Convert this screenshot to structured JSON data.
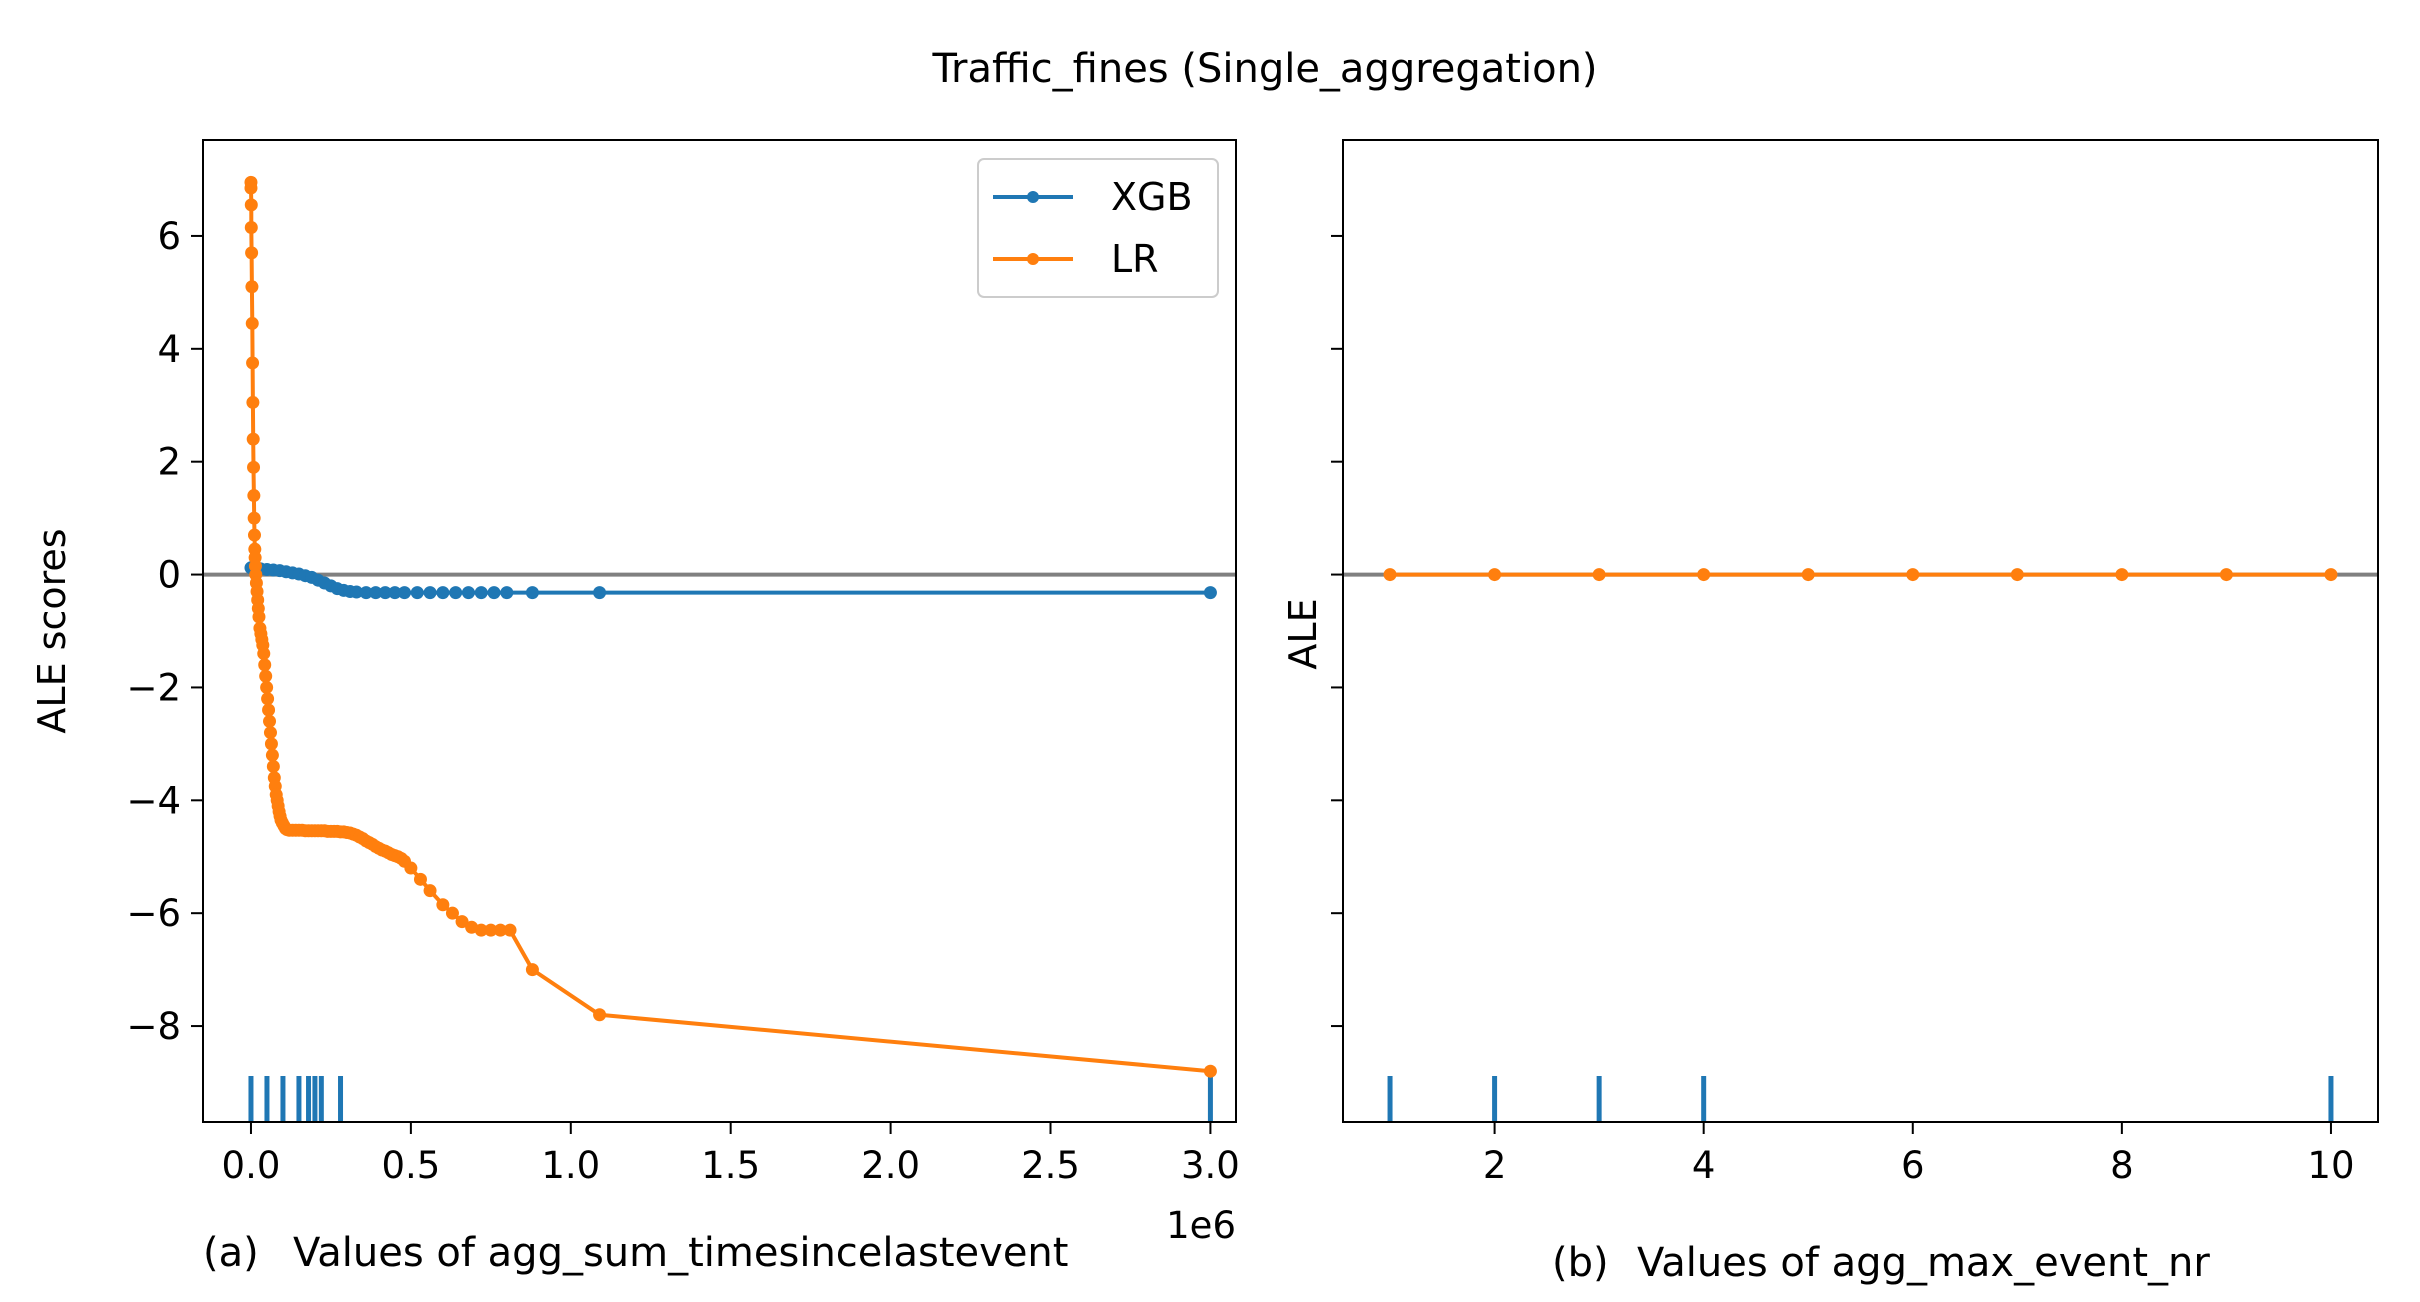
{
  "figure": {
    "title": "Traffic_fines (Single_aggregation)"
  },
  "chart_data": [
    {
      "type": "line",
      "panel_label": "(a)",
      "xlabel": "Values of agg_sum_timesincelastevent",
      "ylabel": "ALE scores",
      "x_offset_label": "1e6",
      "xlim": [
        -0.15,
        3.08
      ],
      "ylim": [
        -9.7,
        7.7
      ],
      "x_ticks": [
        0.0,
        0.5,
        1.0,
        1.5,
        2.0,
        2.5,
        3.0
      ],
      "x_tick_labels": [
        "0.0",
        "0.5",
        "1.0",
        "1.5",
        "2.0",
        "2.5",
        "3.0"
      ],
      "y_ticks": [
        -8,
        -6,
        -4,
        -2,
        0,
        2,
        4,
        6
      ],
      "y_tick_labels": [
        "−8",
        "−6",
        "−4",
        "−2",
        "0",
        "2",
        "4",
        "6"
      ],
      "hline": 0,
      "rug_x": [
        0.0,
        0.05,
        0.1,
        0.15,
        0.18,
        0.2,
        0.22,
        0.28,
        3.0
      ],
      "legend": {
        "position": "top-right",
        "entries": [
          "XGB",
          "LR"
        ]
      },
      "series": [
        {
          "name": "XGB",
          "color": "#1f77b4",
          "x": [
            0.0,
            0.01,
            0.02,
            0.03,
            0.05,
            0.07,
            0.09,
            0.11,
            0.13,
            0.15,
            0.17,
            0.19,
            0.21,
            0.23,
            0.25,
            0.27,
            0.29,
            0.31,
            0.33,
            0.36,
            0.39,
            0.42,
            0.45,
            0.48,
            0.52,
            0.56,
            0.6,
            0.64,
            0.68,
            0.72,
            0.76,
            0.8,
            0.88,
            1.09,
            3.0
          ],
          "y": [
            0.12,
            0.12,
            0.11,
            0.1,
            0.09,
            0.08,
            0.07,
            0.05,
            0.03,
            0.01,
            -0.02,
            -0.05,
            -0.1,
            -0.15,
            -0.2,
            -0.25,
            -0.28,
            -0.3,
            -0.31,
            -0.32,
            -0.32,
            -0.32,
            -0.32,
            -0.32,
            -0.32,
            -0.32,
            -0.32,
            -0.32,
            -0.32,
            -0.32,
            -0.32,
            -0.32,
            -0.32,
            -0.32,
            -0.32
          ]
        },
        {
          "name": "LR",
          "color": "#ff7f0e",
          "x": [
            0.0,
            0.0,
            0.001,
            0.001,
            0.002,
            0.003,
            0.004,
            0.005,
            0.006,
            0.007,
            0.008,
            0.009,
            0.01,
            0.011,
            0.012,
            0.013,
            0.014,
            0.015,
            0.017,
            0.019,
            0.021,
            0.023,
            0.025,
            0.028,
            0.031,
            0.034,
            0.037,
            0.04,
            0.043,
            0.046,
            0.049,
            0.052,
            0.055,
            0.058,
            0.061,
            0.064,
            0.067,
            0.07,
            0.073,
            0.076,
            0.079,
            0.082,
            0.085,
            0.088,
            0.091,
            0.094,
            0.098,
            0.103,
            0.108,
            0.113,
            0.12,
            0.13,
            0.14,
            0.15,
            0.16,
            0.17,
            0.18,
            0.19,
            0.2,
            0.21,
            0.22,
            0.23,
            0.24,
            0.25,
            0.26,
            0.27,
            0.28,
            0.29,
            0.3,
            0.31,
            0.32,
            0.33,
            0.34,
            0.35,
            0.36,
            0.37,
            0.38,
            0.39,
            0.4,
            0.41,
            0.42,
            0.43,
            0.44,
            0.45,
            0.46,
            0.47,
            0.48,
            0.5,
            0.53,
            0.56,
            0.6,
            0.63,
            0.66,
            0.69,
            0.72,
            0.75,
            0.78,
            0.81,
            0.88,
            1.09,
            3.0
          ],
          "y": [
            6.95,
            6.85,
            6.55,
            6.15,
            5.7,
            5.1,
            4.45,
            3.75,
            3.05,
            2.4,
            1.9,
            1.4,
            1.0,
            0.7,
            0.45,
            0.3,
            0.15,
            0.0,
            -0.15,
            -0.3,
            -0.45,
            -0.6,
            -0.75,
            -0.95,
            -1.05,
            -1.15,
            -1.25,
            -1.4,
            -1.6,
            -1.8,
            -2.0,
            -2.2,
            -2.4,
            -2.6,
            -2.8,
            -3.0,
            -3.2,
            -3.4,
            -3.6,
            -3.75,
            -3.9,
            -4.0,
            -4.1,
            -4.2,
            -4.28,
            -4.35,
            -4.4,
            -4.45,
            -4.5,
            -4.52,
            -4.53,
            -4.53,
            -4.53,
            -4.53,
            -4.53,
            -4.54,
            -4.54,
            -4.54,
            -4.54,
            -4.54,
            -4.54,
            -4.54,
            -4.55,
            -4.55,
            -4.55,
            -4.55,
            -4.56,
            -4.56,
            -4.57,
            -4.58,
            -4.6,
            -4.62,
            -4.65,
            -4.68,
            -4.72,
            -4.75,
            -4.78,
            -4.82,
            -4.85,
            -4.88,
            -4.9,
            -4.93,
            -4.96,
            -4.98,
            -5.0,
            -5.03,
            -5.08,
            -5.2,
            -5.4,
            -5.6,
            -5.85,
            -6.0,
            -6.15,
            -6.25,
            -6.3,
            -6.3,
            -6.3,
            -6.3,
            -7.0,
            -7.8,
            -8.8
          ]
        }
      ]
    },
    {
      "type": "line",
      "panel_label": "(b)",
      "xlabel": "Values of agg_max_event_nr",
      "ylabel": "ALE",
      "xlim": [
        0.55,
        10.45
      ],
      "ylim": [
        -9.7,
        7.7
      ],
      "x_ticks": [
        2,
        4,
        6,
        8,
        10
      ],
      "x_tick_labels": [
        "2",
        "4",
        "6",
        "8",
        "10"
      ],
      "y_ticks": [
        -8,
        -6,
        -4,
        -2,
        0,
        2,
        4,
        6
      ],
      "hline": 0,
      "rug_x": [
        1,
        2,
        3,
        4,
        10
      ],
      "series": [
        {
          "name": "LR",
          "color": "#ff7f0e",
          "x": [
            1,
            2,
            3,
            4,
            5,
            6,
            7,
            8,
            9,
            10
          ],
          "y": [
            0,
            0,
            0,
            0,
            0,
            0,
            0,
            0,
            0,
            0
          ]
        }
      ]
    }
  ],
  "colors": {
    "zero_line": "#808080",
    "rug": "#1f77b4",
    "axis": "#000000"
  }
}
